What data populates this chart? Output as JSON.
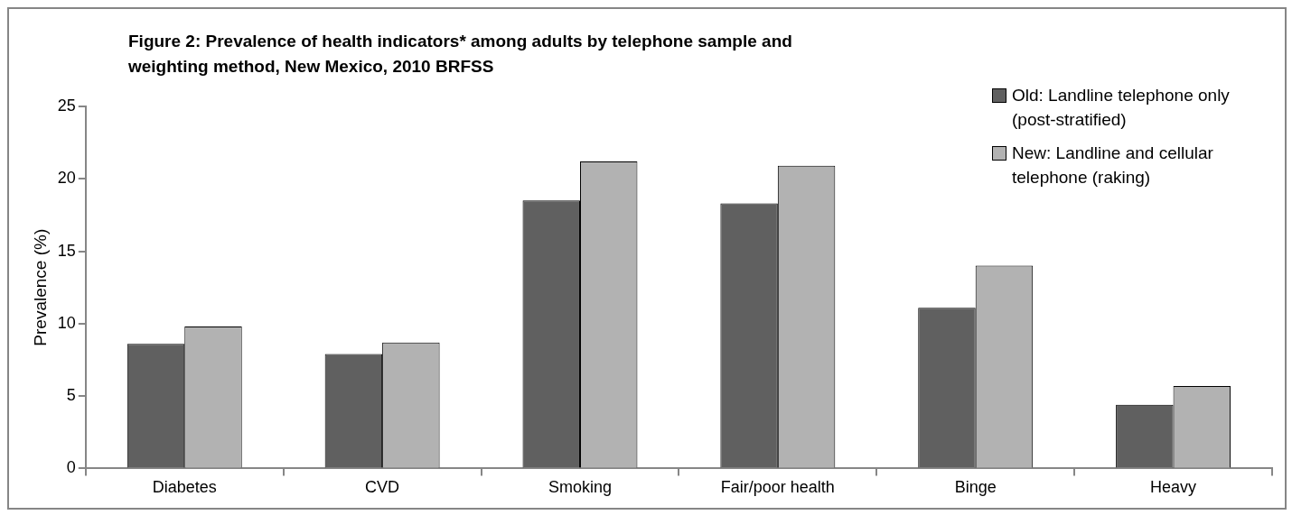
{
  "chart_data": {
    "type": "bar",
    "title": "Figure 2: Prevalence of health indicators* among adults by telephone sample and weighting method, New Mexico, 2010 BRFSS",
    "ylabel": "Prevalence (%)",
    "categories": [
      "Diabetes",
      "CVD",
      "Smoking",
      "Fair/poor health",
      "Binge",
      "Heavy"
    ],
    "series": [
      {
        "name": "Old: Landline telephone only (post-stratified)",
        "color": "#606060",
        "values": [
          8.6,
          7.9,
          18.5,
          18.3,
          11.1,
          4.4
        ]
      },
      {
        "name": "New: Landline and cellular telephone (raking)",
        "color": "#b2b2b2",
        "values": [
          9.8,
          8.7,
          21.2,
          20.9,
          14.0,
          5.7
        ]
      }
    ],
    "ylim": [
      0,
      25
    ],
    "yticks": [
      0,
      5,
      10,
      15,
      20,
      25
    ],
    "grid": false,
    "legend": "top right"
  }
}
